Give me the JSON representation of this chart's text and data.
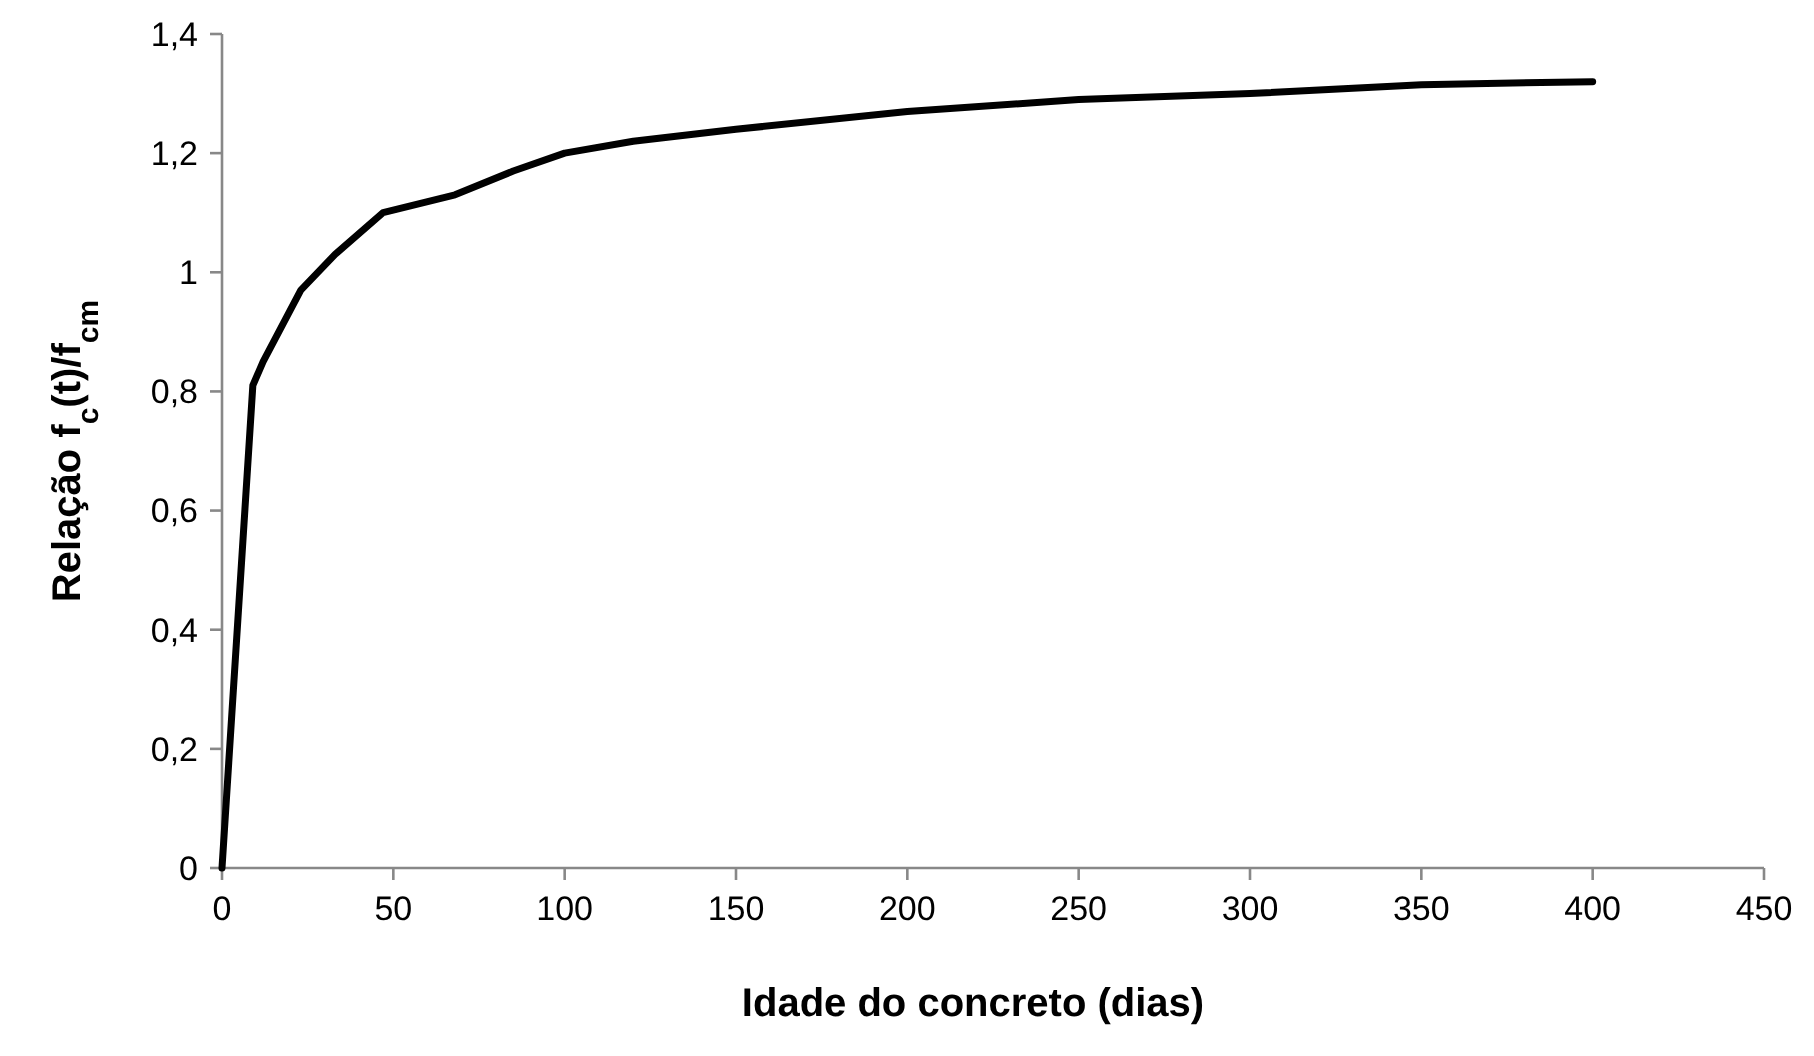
{
  "chart_data": {
    "type": "line",
    "xlabel": "Idade do concreto (dias)",
    "ylabel": "Relação f$_{c}$(t)/f$_{cm}$",
    "xlim": [
      0,
      450
    ],
    "xticks": [
      0,
      50,
      100,
      150,
      200,
      250,
      300,
      350,
      400,
      450
    ],
    "ylim": [
      0,
      1.4
    ],
    "yticks": [
      {
        "value": 0,
        "label": "0"
      },
      {
        "value": 0.2,
        "label": "0,2"
      },
      {
        "value": 0.4,
        "label": "0,4"
      },
      {
        "value": 0.6,
        "label": "0,6"
      },
      {
        "value": 0.8,
        "label": "0,8"
      },
      {
        "value": 1,
        "label": "1"
      },
      {
        "value": 1.2,
        "label": "1,2"
      },
      {
        "value": 1.4,
        "label": "1,4"
      }
    ],
    "x": [
      0,
      9,
      12,
      23,
      33,
      47,
      68,
      85,
      100,
      120,
      150,
      200,
      250,
      300,
      350,
      400
    ],
    "series": [
      {
        "color": "#000000",
        "values": [
          0,
          0.81,
          0.85,
          0.97,
          1.03,
          1.1,
          1.13,
          1.17,
          1.2,
          1.22,
          1.24,
          1.27,
          1.29,
          1.3,
          1.315,
          1.32
        ]
      }
    ],
    "grid": false,
    "marker": "none",
    "line_style": "solid"
  }
}
